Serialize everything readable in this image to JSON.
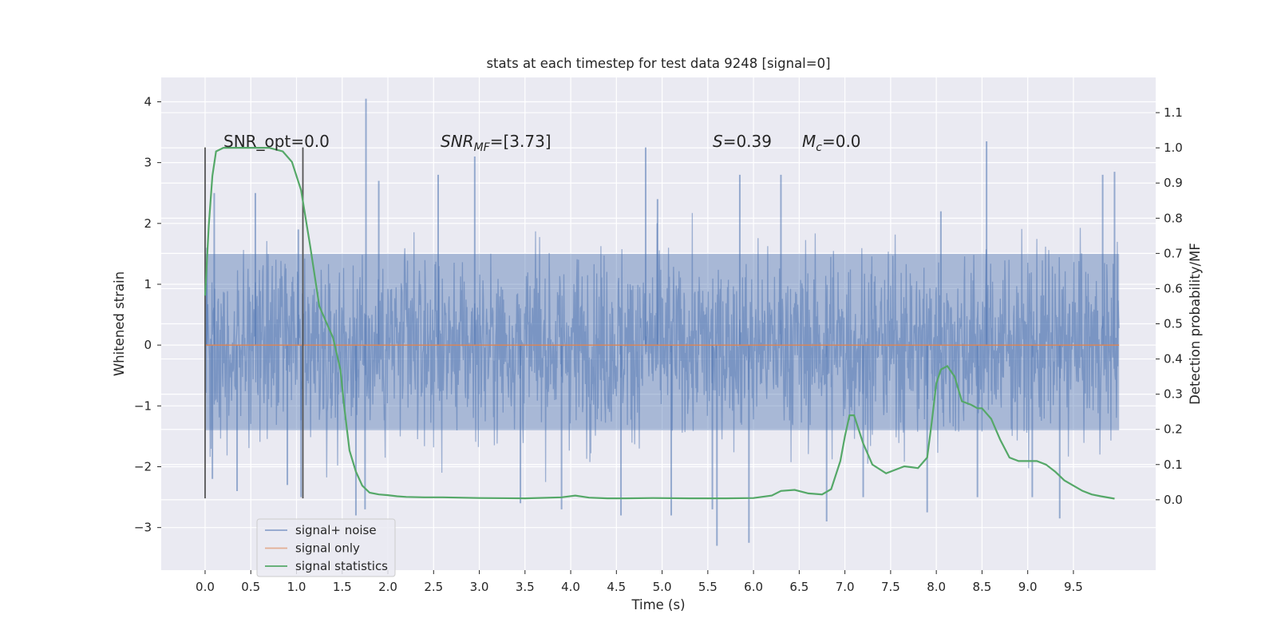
{
  "chart_data": {
    "type": "line",
    "title": "stats at each timestep for test data 9248 [signal=0]",
    "xlabel": "Time (s)",
    "ylabel": "Whitened strain",
    "ylabel_right": "Detection probability/MF",
    "xlim": [
      -0.48,
      10.4
    ],
    "ylim": [
      -3.7,
      4.4
    ],
    "ylim_right": [
      -0.2,
      1.2
    ],
    "x_ticks": [
      "0.0",
      "0.5",
      "1.0",
      "1.5",
      "2.0",
      "2.5",
      "3.0",
      "3.5",
      "4.0",
      "4.5",
      "5.0",
      "5.5",
      "6.0",
      "6.5",
      "7.0",
      "7.5",
      "8.0",
      "8.5",
      "9.0",
      "9.5"
    ],
    "y_ticks": [
      "−3",
      "−2",
      "−1",
      "0",
      "1",
      "2",
      "3",
      "4"
    ],
    "y_right_ticks": [
      "0.0",
      "0.1",
      "0.2",
      "0.3",
      "0.4",
      "0.5",
      "0.6",
      "0.7",
      "0.8",
      "0.9",
      "1.0",
      "1.1"
    ],
    "grid": true,
    "legend_position": "lower-left",
    "colors": {
      "background": "#eaeaf2",
      "grid": "#ffffff",
      "noise": "#4c72b0",
      "signal": "#dd8452",
      "stats": "#55a868",
      "marker": "#555555"
    },
    "annotations": [
      {
        "id": "snr-opt",
        "text": "SNR_opt=0.0"
      },
      {
        "id": "snr-mf",
        "base": "SNR",
        "sub": "MF",
        "rest": "=[3.73]"
      },
      {
        "id": "s-stat",
        "base": "S",
        "rest": "=0.39"
      },
      {
        "id": "mc",
        "base": "M",
        "sub": "c",
        "rest": "=0.0"
      }
    ],
    "vertical_markers": [
      0.0,
      1.07
    ],
    "series": [
      {
        "name": "signal+ noise",
        "noise_envelope": {
          "x_range": [
            0.0,
            10.0
          ],
          "typical_amplitude": 1.2,
          "peak_max": 4.05,
          "peak_min": -3.3
        },
        "spikes_x": [
          0.02,
          0.08,
          0.1,
          0.35,
          0.55,
          0.9,
          1.02,
          1.05,
          1.65,
          1.76,
          1.75,
          1.9,
          2.55,
          2.95,
          3.45,
          3.9,
          4.55,
          4.82,
          4.95,
          5.1,
          5.55,
          5.6,
          5.85,
          5.95,
          6.3,
          6.8,
          7.2,
          7.9,
          8.05,
          8.45,
          8.55,
          9.05,
          9.35,
          9.82,
          9.95
        ],
        "spikes_y": [
          1.6,
          -2.2,
          2.5,
          -2.4,
          2.5,
          -2.3,
          1.9,
          -2.5,
          -2.8,
          4.05,
          -2.7,
          2.7,
          2.8,
          3.1,
          -2.6,
          -2.7,
          -2.8,
          3.25,
          2.4,
          -2.8,
          -2.7,
          -3.3,
          2.8,
          -3.25,
          2.8,
          -2.9,
          -2.5,
          -2.75,
          2.2,
          -2.5,
          3.35,
          -2.5,
          -2.85,
          2.8,
          2.85
        ]
      },
      {
        "name": "signal only",
        "x": [
          0.0,
          10.0
        ],
        "y": [
          0.0,
          0.0
        ]
      },
      {
        "name": "signal statistics",
        "axis": "right",
        "x": [
          0.0,
          0.04,
          0.08,
          0.12,
          0.2,
          0.3,
          0.5,
          0.7,
          0.85,
          0.95,
          1.05,
          1.15,
          1.25,
          1.3,
          1.4,
          1.48,
          1.52,
          1.58,
          1.65,
          1.72,
          1.8,
          1.9,
          2.0,
          2.1,
          2.2,
          2.4,
          2.6,
          3.0,
          3.5,
          3.9,
          4.05,
          4.2,
          4.4,
          4.6,
          4.9,
          5.3,
          5.7,
          6.0,
          6.2,
          6.3,
          6.45,
          6.6,
          6.75,
          6.85,
          6.95,
          7.0,
          7.05,
          7.1,
          7.2,
          7.3,
          7.45,
          7.55,
          7.65,
          7.8,
          7.9,
          7.95,
          8.0,
          8.05,
          8.12,
          8.2,
          8.28,
          8.38,
          8.45,
          8.5,
          8.6,
          8.7,
          8.8,
          8.9,
          9.0,
          9.1,
          9.2,
          9.3,
          9.4,
          9.5,
          9.6,
          9.7,
          9.8,
          9.95
        ],
        "y": [
          0.58,
          0.78,
          0.92,
          0.99,
          1.0,
          1.0,
          1.0,
          1.0,
          0.99,
          0.96,
          0.88,
          0.72,
          0.55,
          0.52,
          0.46,
          0.37,
          0.27,
          0.14,
          0.08,
          0.04,
          0.02,
          0.015,
          0.013,
          0.01,
          0.008,
          0.007,
          0.007,
          0.005,
          0.004,
          0.007,
          0.012,
          0.006,
          0.004,
          0.004,
          0.005,
          0.004,
          0.004,
          0.005,
          0.012,
          0.025,
          0.028,
          0.018,
          0.015,
          0.03,
          0.11,
          0.18,
          0.24,
          0.24,
          0.16,
          0.1,
          0.075,
          0.085,
          0.095,
          0.09,
          0.12,
          0.22,
          0.33,
          0.37,
          0.38,
          0.35,
          0.28,
          0.27,
          0.26,
          0.26,
          0.23,
          0.17,
          0.12,
          0.11,
          0.11,
          0.11,
          0.1,
          0.08,
          0.055,
          0.04,
          0.025,
          0.015,
          0.01,
          0.003
        ]
      }
    ]
  }
}
